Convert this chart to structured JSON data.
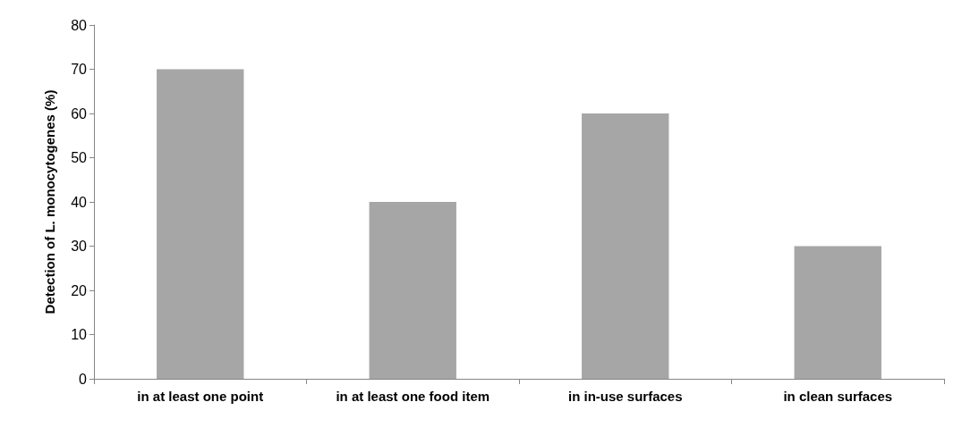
{
  "chart_data": {
    "type": "bar",
    "ylabel": "Detection of L. monocytogenes (%)",
    "categories": [
      "in at least one point",
      "in at least one food item",
      "in in-use surfaces",
      "in clean surfaces"
    ],
    "values": [
      70,
      40,
      60,
      30
    ],
    "color": "#a6a6a6",
    "ylim": [
      0,
      80
    ],
    "yticks": [
      0,
      10,
      20,
      30,
      40,
      50,
      60,
      70,
      80
    ],
    "grid": false
  }
}
